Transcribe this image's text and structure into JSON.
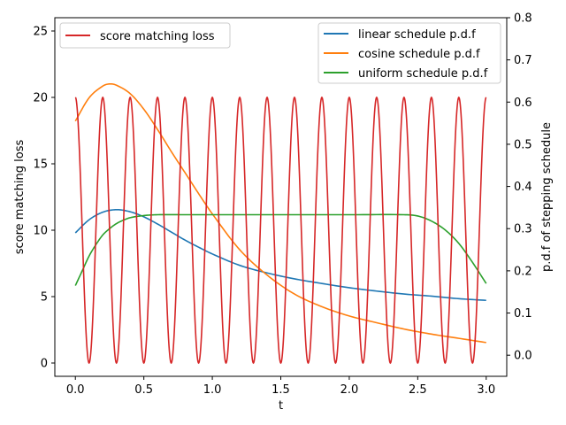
{
  "chart_data": {
    "type": "line",
    "xlabel": "t",
    "ylabel_left": "score matching loss",
    "ylabel_right": "p.d.f of stepping schedule",
    "xlim": [
      -0.15,
      3.15
    ],
    "ylim_left": [
      -1.0,
      26.0
    ],
    "ylim_right": [
      -0.05,
      0.8
    ],
    "x_ticks": [
      "0.0",
      "0.5",
      "1.0",
      "1.5",
      "2.0",
      "2.5",
      "3.0"
    ],
    "y_ticks_left": [
      "0",
      "5",
      "10",
      "15",
      "20",
      "25"
    ],
    "y_ticks_right": [
      "0.0",
      "0.1",
      "0.2",
      "0.3",
      "0.4",
      "0.5",
      "0.6",
      "0.7",
      "0.8"
    ],
    "grid": false,
    "legend_left_placement": "upper-left",
    "legend_right_placement": "upper-right",
    "loss_series": {
      "name": "score matching loss",
      "color": "#d62728",
      "axis": "left",
      "amplitude": 10,
      "offset": 10,
      "period": 0.2,
      "x_start": 0,
      "x_end": 3,
      "form": "10 + 10*cos(2*pi*t/0.2)"
    },
    "pdf_series": [
      {
        "name": "linear schedule p.d.f",
        "color": "#1f77b4",
        "axis": "right",
        "x": [
          0,
          0.1,
          0.2,
          0.3,
          0.4,
          0.5,
          0.6,
          0.7,
          0.8,
          0.9,
          1.0,
          1.2,
          1.4,
          1.6,
          1.8,
          2.0,
          2.2,
          2.4,
          2.6,
          2.8,
          3.0
        ],
        "y": [
          0.29,
          0.321,
          0.339,
          0.345,
          0.34,
          0.328,
          0.311,
          0.292,
          0.273,
          0.256,
          0.24,
          0.213,
          0.195,
          0.181,
          0.17,
          0.16,
          0.152,
          0.145,
          0.14,
          0.134,
          0.13
        ]
      },
      {
        "name": "cosine schedule p.d.f",
        "color": "#ff7f0e",
        "axis": "right",
        "x": [
          0,
          0.1,
          0.2,
          0.25,
          0.3,
          0.4,
          0.5,
          0.6,
          0.7,
          0.8,
          0.9,
          1.0,
          1.2,
          1.4,
          1.6,
          1.8,
          2.0,
          2.2,
          2.4,
          2.6,
          2.8,
          3.0
        ],
        "y": [
          0.555,
          0.61,
          0.638,
          0.643,
          0.64,
          0.62,
          0.583,
          0.535,
          0.483,
          0.433,
          0.383,
          0.335,
          0.25,
          0.19,
          0.145,
          0.115,
          0.093,
          0.077,
          0.062,
          0.05,
          0.04,
          0.03
        ]
      },
      {
        "name": "uniform schedule p.d.f",
        "color": "#2ca02c",
        "axis": "right",
        "x": [
          0,
          0.05,
          0.1,
          0.15,
          0.2,
          0.25,
          0.3,
          0.35,
          0.4,
          0.5,
          0.6,
          0.8,
          1.0,
          1.5,
          2.0,
          2.4,
          2.5,
          2.6,
          2.7,
          2.8,
          2.9,
          3.0
        ],
        "y": [
          0.165,
          0.2,
          0.235,
          0.262,
          0.285,
          0.3,
          0.312,
          0.32,
          0.326,
          0.331,
          0.333,
          0.333,
          0.333,
          0.333,
          0.333,
          0.333,
          0.33,
          0.318,
          0.297,
          0.265,
          0.22,
          0.17
        ]
      }
    ]
  }
}
